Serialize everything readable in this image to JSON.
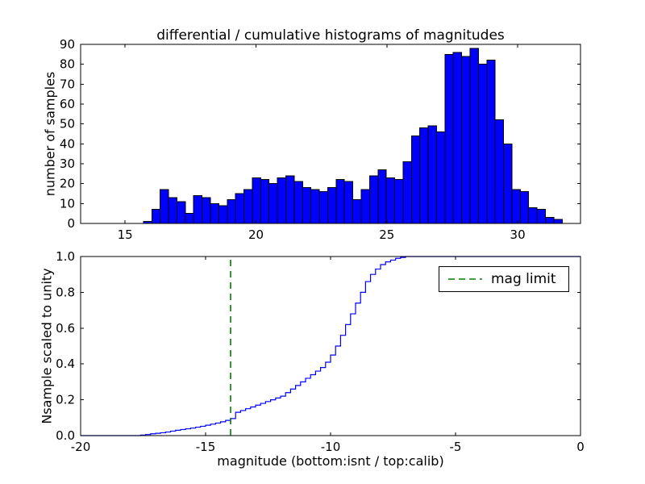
{
  "chart_data": [
    {
      "type": "bar",
      "title": "differential / cumulative histograms of magnitudes",
      "ylabel": "number of samples",
      "xlabel": "",
      "bar_color": "#0000ff",
      "bar_edge_color": "#000000",
      "xlim": [
        13.3,
        32.4
      ],
      "ylim": [
        0,
        90
      ],
      "xticks": [
        15,
        20,
        25,
        30
      ],
      "xtick_labels": [
        "15",
        "20",
        "25",
        "30"
      ],
      "yticks": [
        0,
        10,
        20,
        30,
        40,
        50,
        60,
        70,
        80,
        90
      ],
      "ytick_labels": [
        "0",
        "10",
        "20",
        "30",
        "40",
        "50",
        "60",
        "70",
        "80",
        "90"
      ],
      "grid": false,
      "bin_start": 15.7,
      "bin_width": 0.32,
      "values": [
        1,
        7,
        17,
        13,
        11,
        5,
        14,
        13,
        10,
        9,
        12,
        15,
        17,
        23,
        22,
        20,
        23,
        24,
        21,
        18,
        17,
        16,
        18,
        22,
        21,
        12,
        17,
        24,
        27,
        23,
        22,
        31,
        44,
        48,
        49,
        46,
        85,
        86,
        84,
        88,
        80,
        82,
        52,
        40,
        17,
        16,
        8,
        7,
        3,
        2
      ]
    },
    {
      "type": "line",
      "subtype": "cumulative-step",
      "ylabel": "Nsample scaled to unity",
      "xlabel": "magnitude (bottom:isnt / top:calib)",
      "line_color": "#0000ff",
      "xlim": [
        -20,
        0
      ],
      "ylim": [
        0.0,
        1.0
      ],
      "xticks": [
        -20,
        -15,
        -10,
        -5,
        0
      ],
      "xtick_labels": [
        "-20",
        "-15",
        "-10",
        "-5",
        "0"
      ],
      "yticks": [
        0.0,
        0.2,
        0.4,
        0.6,
        0.8,
        1.0
      ],
      "ytick_labels": [
        "0.0",
        "0.2",
        "0.4",
        "0.6",
        "0.8",
        "1.0"
      ],
      "grid": false,
      "bin_start": -17.6,
      "bin_width": 0.2,
      "cumulative": [
        0.003,
        0.006,
        0.01,
        0.013,
        0.016,
        0.02,
        0.025,
        0.03,
        0.034,
        0.038,
        0.042,
        0.047,
        0.052,
        0.058,
        0.064,
        0.07,
        0.077,
        0.085,
        0.095,
        0.13,
        0.14,
        0.15,
        0.16,
        0.17,
        0.18,
        0.19,
        0.2,
        0.21,
        0.22,
        0.24,
        0.26,
        0.28,
        0.3,
        0.32,
        0.34,
        0.36,
        0.38,
        0.41,
        0.45,
        0.5,
        0.56,
        0.62,
        0.68,
        0.74,
        0.8,
        0.86,
        0.9,
        0.93,
        0.955,
        0.97,
        0.98,
        0.99,
        0.995,
        1.0
      ],
      "mag_limit": {
        "x": -14,
        "color": "#008000",
        "linestyle": "dashed",
        "label": "mag limit"
      },
      "legend": {
        "position": "upper-right",
        "entries": [
          "mag limit"
        ]
      }
    }
  ]
}
